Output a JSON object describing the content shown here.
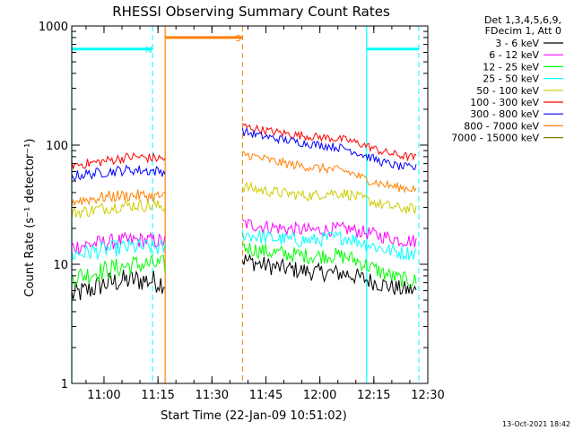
{
  "chart_data": {
    "type": "line",
    "title": "RHESSI Observing Summary Count Rates",
    "xlabel": "Start Time (22-Jan-09 10:51:02)",
    "ylabel": "Count Rate (s⁻¹ detector⁻¹)",
    "y_scale": "log",
    "ylim": [
      1,
      1000
    ],
    "xlim": [
      "10:51:02",
      "12:30:00"
    ],
    "x_ticks": [
      "11:00",
      "11:15",
      "11:30",
      "11:45",
      "12:00",
      "12:15",
      "12:30"
    ],
    "y_ticks": [
      "1",
      "10",
      "100",
      "1000"
    ],
    "legend_header": [
      "Det 1,3,4,5,6,9,",
      "FDecim 1, Att 0"
    ],
    "legend_position": "right",
    "series": [
      {
        "name": "3 - 6 keV",
        "color": "#000000",
        "segments": [
          {
            "start": "10:51:02",
            "end": "11:17:00",
            "values": [
              5.5,
              6.0,
              6.8,
              7.2,
              7.4,
              7.3,
              7.0
            ]
          },
          {
            "start": "11:38:30",
            "end": "12:27:00",
            "values": [
              11.0,
              10.0,
              9.4,
              9.0,
              8.6,
              8.5,
              8.3,
              7.5,
              6.8,
              6.2,
              6.0
            ]
          }
        ]
      },
      {
        "name": "6 - 12 keV",
        "color": "#ff00ff",
        "segments": [
          {
            "start": "10:51:02",
            "end": "11:17:00",
            "values": [
              14.0,
              14.6,
              15.2,
              15.6,
              15.9,
              15.8,
              15.5
            ]
          },
          {
            "start": "11:38:30",
            "end": "12:27:00",
            "values": [
              22.0,
              21.0,
              20.2,
              19.6,
              19.2,
              19.6,
              19.8,
              18.5,
              17.2,
              16.0,
              15.6
            ]
          }
        ]
      },
      {
        "name": "12 - 25 keV",
        "color": "#00ff00",
        "segments": [
          {
            "start": "10:51:02",
            "end": "11:17:00",
            "values": [
              7.8,
              8.2,
              8.8,
              9.4,
              9.9,
              10.0,
              9.8
            ]
          },
          {
            "start": "11:38:30",
            "end": "12:27:00",
            "values": [
              14.0,
              13.0,
              12.4,
              12.0,
              11.7,
              11.9,
              11.5,
              10.0,
              8.5,
              7.5,
              7.2
            ]
          }
        ]
      },
      {
        "name": "25 - 50 keV",
        "color": "#00ffff",
        "segments": [
          {
            "start": "10:51:02",
            "end": "11:17:00",
            "values": [
              12.0,
              12.6,
              13.2,
              13.7,
              14.0,
              13.9,
              13.6
            ]
          },
          {
            "start": "11:38:30",
            "end": "12:27:00",
            "values": [
              18.0,
              17.0,
              16.4,
              16.0,
              15.8,
              16.6,
              16.8,
              15.0,
              13.5,
              12.6,
              12.4
            ]
          }
        ]
      },
      {
        "name": "50 - 100 keV",
        "color": "#cccc00",
        "segments": [
          {
            "start": "10:51:02",
            "end": "11:17:00",
            "values": [
              27.0,
              28.0,
              29.5,
              30.8,
              31.4,
              31.0,
              30.5
            ]
          },
          {
            "start": "11:38:30",
            "end": "12:27:00",
            "values": [
              45.0,
              42.0,
              40.0,
              38.5,
              37.5,
              40.0,
              39.0,
              35.0,
              31.5,
              29.5,
              29.0
            ]
          }
        ]
      },
      {
        "name": "100 - 300 keV",
        "color": "#ff0000",
        "segments": [
          {
            "start": "10:51:02",
            "end": "11:17:00",
            "values": [
              68.0,
              70.0,
              73.0,
              77.0,
              80.0,
              78.0,
              77.0
            ]
          },
          {
            "start": "11:38:30",
            "end": "12:27:00",
            "values": [
              145.0,
              135.0,
              128.0,
              122.0,
              118.0,
              115.0,
              110.0,
              100.0,
              88.0,
              82.0,
              78.0
            ]
          }
        ]
      },
      {
        "name": "300 - 800 keV",
        "color": "#0000ff",
        "segments": [
          {
            "start": "10:51:02",
            "end": "11:17:00",
            "values": [
              55.0,
              57.0,
              59.0,
              61.0,
              62.0,
              61.0,
              60.0
            ]
          },
          {
            "start": "11:38:30",
            "end": "12:27:00",
            "values": [
              130.0,
              120.0,
              113.0,
              107.0,
              102.0,
              98.0,
              93.0,
              82.0,
              72.0,
              66.0,
              64.0
            ]
          }
        ]
      },
      {
        "name": "800 - 7000 keV",
        "color": "#ff8000",
        "segments": [
          {
            "start": "10:51:02",
            "end": "11:17:00",
            "values": [
              34.0,
              35.0,
              36.5,
              37.5,
              38.0,
              37.5,
              37.0
            ]
          },
          {
            "start": "11:38:30",
            "end": "12:27:00",
            "values": [
              85.0,
              78.0,
              72.0,
              68.0,
              65.0,
              63.0,
              60.0,
              52.0,
              47.0,
              44.0,
              43.0
            ]
          }
        ]
      },
      {
        "name": "7000 - 15000 keV",
        "color": "#808000",
        "segments": []
      }
    ],
    "annotations": [
      {
        "label": "N",
        "color": "#00ffff",
        "type": "night",
        "bar_level": 640,
        "intervals": [
          [
            "10:51:02",
            "11:13:30"
          ],
          [
            "12:13:00",
            "12:27:30"
          ]
        ],
        "solid_lines": [
          "10:51:02",
          "12:13:00"
        ],
        "dashed_lines": [
          "11:13:30",
          "12:27:30"
        ]
      },
      {
        "label": "S",
        "color": "#ff8000",
        "type": "SAA",
        "bar_level": 800,
        "intervals": [
          [
            "11:17:00",
            "11:38:30"
          ]
        ],
        "solid_lines": [
          "11:17:00"
        ],
        "dashed_lines": [
          "11:38:30"
        ]
      }
    ]
  },
  "footer": {
    "timestamp": "13-Oct-2021 18:42"
  }
}
